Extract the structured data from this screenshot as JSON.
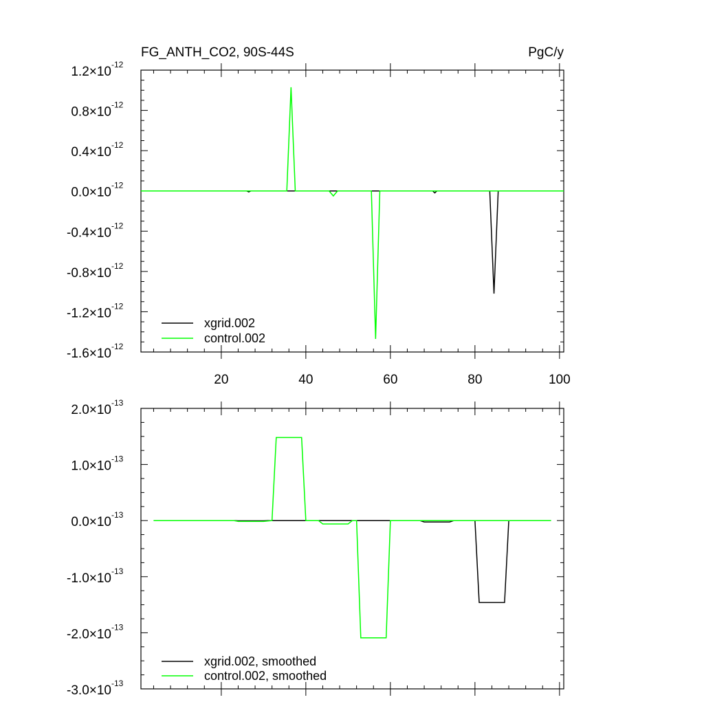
{
  "chart_data": [
    {
      "type": "line",
      "title": "FG_ANTH_CO2, 90S-44S",
      "units": "PgC/y",
      "xlim": [
        1,
        101
      ],
      "ylim": [
        -1.6e-12,
        1.2e-12
      ],
      "x_ticks": [
        20,
        40,
        60,
        80,
        100
      ],
      "y_ticks": [
        {
          "value": 1.2e-12,
          "mantissa": "1.2",
          "exponent": "-12"
        },
        {
          "value": 8e-13,
          "mantissa": "0.8",
          "exponent": "-12"
        },
        {
          "value": 4e-13,
          "mantissa": "0.4",
          "exponent": "-12"
        },
        {
          "value": 0.0,
          "mantissa": "0.0",
          "exponent": "-12"
        },
        {
          "value": -4e-13,
          "mantissa": "-0.4",
          "exponent": "-12"
        },
        {
          "value": -8e-13,
          "mantissa": "-0.8",
          "exponent": "-12"
        },
        {
          "value": -1.2e-12,
          "mantissa": "-1.2",
          "exponent": "-12"
        },
        {
          "value": -1.6e-12,
          "mantissa": "-1.6",
          "exponent": "-12"
        }
      ],
      "legend_position": "bottom-left",
      "series": [
        {
          "name": "xgrid.002",
          "color": "#000000",
          "points": [
            [
              1,
              0
            ],
            [
              26,
              0
            ],
            [
              26.5,
              -1e-14
            ],
            [
              27,
              0
            ],
            [
              70,
              0
            ],
            [
              70.5,
              -2e-14
            ],
            [
              71,
              0
            ],
            [
              83.5,
              0
            ],
            [
              84.5,
              -1.02e-12
            ],
            [
              85.5,
              0
            ],
            [
              101,
              0
            ]
          ]
        },
        {
          "name": "control.002",
          "color": "#00ff00",
          "points": [
            [
              1,
              0
            ],
            [
              35.5,
              0
            ],
            [
              36.5,
              1.03e-12
            ],
            [
              37.5,
              0
            ],
            [
              45.5,
              0
            ],
            [
              46.5,
              -5e-14
            ],
            [
              47.5,
              0
            ],
            [
              55.5,
              0
            ],
            [
              56.5,
              -1.47e-12
            ],
            [
              57.5,
              0
            ],
            [
              101,
              0
            ]
          ]
        }
      ]
    },
    {
      "type": "line",
      "xlim": [
        1,
        101
      ],
      "ylim": [
        -3e-13,
        2e-13
      ],
      "x_ticks": [
        20,
        40,
        60,
        80,
        100
      ],
      "y_ticks": [
        {
          "value": 2e-13,
          "mantissa": "2.0",
          "exponent": "-13"
        },
        {
          "value": 1e-13,
          "mantissa": "1.0",
          "exponent": "-13"
        },
        {
          "value": 0.0,
          "mantissa": "0.0",
          "exponent": "-13"
        },
        {
          "value": -1e-13,
          "mantissa": "-1.0",
          "exponent": "-13"
        },
        {
          "value": -2e-13,
          "mantissa": "-2.0",
          "exponent": "-13"
        },
        {
          "value": -3e-13,
          "mantissa": "-3.0",
          "exponent": "-13"
        }
      ],
      "legend_position": "bottom-left",
      "series": [
        {
          "name": "xgrid.002, smoothed",
          "color": "#000000",
          "points": [
            [
              4,
              0
            ],
            [
              23,
              0
            ],
            [
              24,
              -3e-16
            ],
            [
              30,
              -3e-16
            ],
            [
              31,
              0
            ],
            [
              67,
              0
            ],
            [
              68,
              -2.5e-15
            ],
            [
              74,
              -2.5e-15
            ],
            [
              75,
              0
            ],
            [
              80,
              0
            ],
            [
              81,
              -1.46e-13
            ],
            [
              87,
              -1.46e-13
            ],
            [
              88,
              0
            ],
            [
              98,
              0
            ]
          ]
        },
        {
          "name": "control.002, smoothed",
          "color": "#00ff00",
          "points": [
            [
              4,
              0
            ],
            [
              23,
              0
            ],
            [
              24,
              -1.5e-15
            ],
            [
              30,
              -1.5e-15
            ],
            [
              32,
              0
            ],
            [
              33,
              1.48e-13
            ],
            [
              39,
              1.48e-13
            ],
            [
              40,
              0
            ],
            [
              43,
              0
            ],
            [
              44,
              -6e-15
            ],
            [
              50,
              -6e-15
            ],
            [
              51,
              0
            ],
            [
              52,
              0
            ],
            [
              53,
              -2.09e-13
            ],
            [
              59,
              -2.09e-13
            ],
            [
              60,
              0
            ],
            [
              98,
              0
            ]
          ]
        }
      ]
    }
  ]
}
